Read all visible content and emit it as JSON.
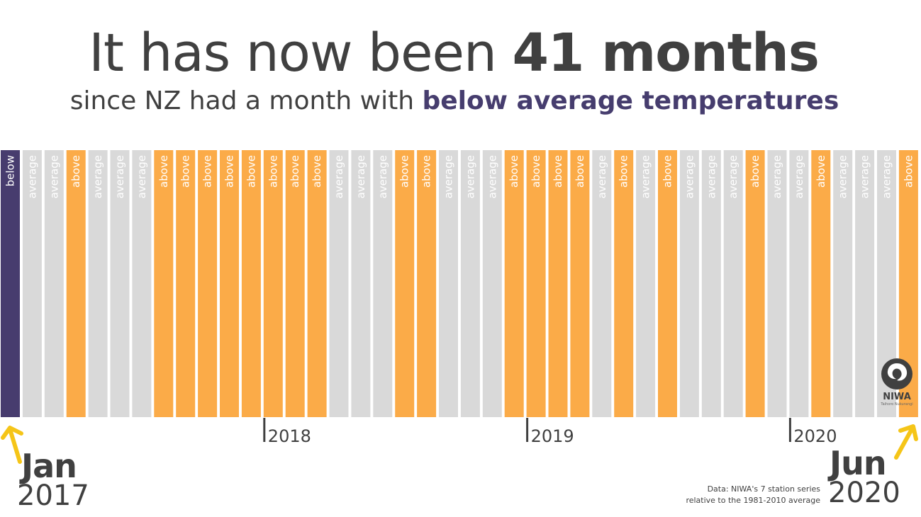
{
  "headline": {
    "prefix": "It has now been ",
    "bold": "41 months"
  },
  "subline": {
    "prefix": "since NZ had a month with ",
    "bold": "below average temperatures"
  },
  "colors": {
    "below": "#473c6e",
    "average": "#d9d9d9",
    "above": "#fbab48",
    "arrow": "#f5c518",
    "text": "#404040"
  },
  "chart_data": {
    "type": "bar",
    "categories": [
      "Jan 2017",
      "Feb 2017",
      "Mar 2017",
      "Apr 2017",
      "May 2017",
      "Jun 2017",
      "Jul 2017",
      "Aug 2017",
      "Sep 2017",
      "Oct 2017",
      "Nov 2017",
      "Dec 2017",
      "Jan 2018",
      "Feb 2018",
      "Mar 2018",
      "Apr 2018",
      "May 2018",
      "Jun 2018",
      "Jul 2018",
      "Aug 2018",
      "Sep 2018",
      "Oct 2018",
      "Nov 2018",
      "Dec 2018",
      "Jan 2019",
      "Feb 2019",
      "Mar 2019",
      "Apr 2019",
      "May 2019",
      "Jun 2019",
      "Jul 2019",
      "Aug 2019",
      "Sep 2019",
      "Oct 2019",
      "Nov 2019",
      "Dec 2019",
      "Jan 2020",
      "Feb 2020",
      "Mar 2020",
      "Apr 2020",
      "May 2020",
      "Jun 2020"
    ],
    "values": [
      "below",
      "average",
      "average",
      "above",
      "average",
      "average",
      "average",
      "above",
      "above",
      "above",
      "above",
      "above",
      "above",
      "above",
      "above",
      "average",
      "average",
      "average",
      "above",
      "above",
      "average",
      "average",
      "average",
      "above",
      "above",
      "above",
      "above",
      "average",
      "above",
      "average",
      "above",
      "average",
      "average",
      "average",
      "above",
      "average",
      "average",
      "above",
      "average",
      "average",
      "average",
      "above"
    ],
    "year_ticks": [
      {
        "label": "2018",
        "index": 12
      },
      {
        "label": "2019",
        "index": 24
      },
      {
        "label": "2020",
        "index": 36
      }
    ]
  },
  "start": {
    "month": "Jan",
    "year": "2017"
  },
  "end": {
    "month": "Jun",
    "year": "2020"
  },
  "source": {
    "line1": "Data: NIWA's 7 station series",
    "line2": "relative to the 1981-2010 average"
  },
  "logo": {
    "word": "NIWA",
    "tagline": "Taihoro Nukurangi"
  }
}
